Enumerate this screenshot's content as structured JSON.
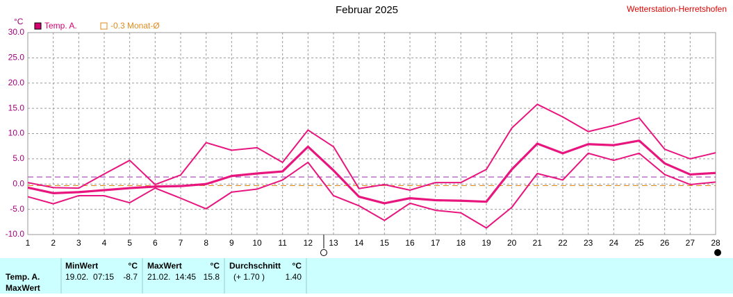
{
  "header": {
    "title": "Februar 2025",
    "station": "Wetterstation-Herretshofen"
  },
  "chart_data": {
    "type": "line",
    "unit": "°C",
    "x": [
      1,
      2,
      3,
      4,
      5,
      6,
      7,
      8,
      9,
      10,
      11,
      12,
      13,
      14,
      15,
      16,
      17,
      18,
      19,
      20,
      21,
      22,
      23,
      24,
      25,
      26,
      27,
      28
    ],
    "xlim": [
      1,
      28
    ],
    "xticks": [
      1,
      2,
      3,
      4,
      5,
      6,
      7,
      8,
      9,
      10,
      11,
      12,
      13,
      14,
      15,
      16,
      17,
      18,
      19,
      20,
      21,
      22,
      23,
      24,
      25,
      26,
      27,
      28
    ],
    "ylim": [
      -10,
      30
    ],
    "yticks": [
      {
        "value": -10,
        "label": "-10.0"
      },
      {
        "value": -5,
        "label": "-5.0"
      },
      {
        "value": 0,
        "label": "0.0"
      },
      {
        "value": 5,
        "label": "5.0"
      },
      {
        "value": 10,
        "label": "10.0"
      },
      {
        "value": 15,
        "label": "15.0"
      },
      {
        "value": 20,
        "label": "20.0"
      },
      {
        "value": 25,
        "label": "25.0"
      },
      {
        "value": 30,
        "label": "30.0"
      }
    ],
    "grid": true,
    "series": [
      {
        "color": "#e8157f",
        "values": [
          0.3,
          -0.7,
          -0.8,
          2.0,
          4.7,
          -0.1,
          1.8,
          8.2,
          6.7,
          7.2,
          4.3,
          10.7,
          7.4,
          -0.9,
          -0.1,
          -1.2,
          0.3,
          0.3,
          2.9,
          11.1,
          15.8,
          13.3,
          10.4,
          11.6,
          13.1,
          6.9,
          5.0,
          6.2
        ]
      },
      {
        "color": "#e8157f",
        "values": [
          -0.7,
          -1.8,
          -1.6,
          -1.2,
          -0.8,
          -0.5,
          -0.4,
          0.0,
          1.6,
          2.1,
          2.5,
          7.4,
          2.7,
          -2.5,
          -3.8,
          -2.8,
          -3.2,
          -3.3,
          -3.5,
          2.9,
          8.0,
          6.1,
          7.9,
          7.7,
          8.6,
          4.1,
          1.9,
          2.2
        ]
      },
      {
        "color": "#e8157f",
        "values": [
          -2.5,
          -3.9,
          -2.3,
          -2.3,
          -3.7,
          -0.8,
          -2.8,
          -4.9,
          -1.6,
          -1.0,
          0.8,
          4.3,
          -2.3,
          -4.3,
          -7.2,
          -3.8,
          -5.2,
          -5.7,
          -8.7,
          -4.6,
          2.1,
          0.8,
          6.1,
          4.7,
          6.1,
          1.9,
          -0.1,
          0.4
        ]
      }
    ],
    "reference_lines": [
      {
        "value": 1.4,
        "color": "#a040b0"
      },
      {
        "value": -0.3,
        "color": "#e08a1e"
      }
    ],
    "legend": [
      {
        "label": "Temp. A.",
        "color": "#d4006f"
      },
      {
        "label": "-0.3 Monat-Ø",
        "color": "#e08a1e"
      }
    ]
  },
  "table": {
    "row_labels": [
      "Temp. A.",
      "MaxWert"
    ],
    "columns": [
      {
        "title": "MinWert",
        "unit": "°C",
        "when": "19.02.  07:15",
        "value": "-8.7"
      },
      {
        "title": "MaxWert",
        "unit": "°C",
        "when": "21.02.  14:45",
        "value": "15.8"
      },
      {
        "title": "Durchschnitt",
        "unit": "°C",
        "when": "(+ 1.70 )",
        "value": "1.40"
      }
    ]
  }
}
